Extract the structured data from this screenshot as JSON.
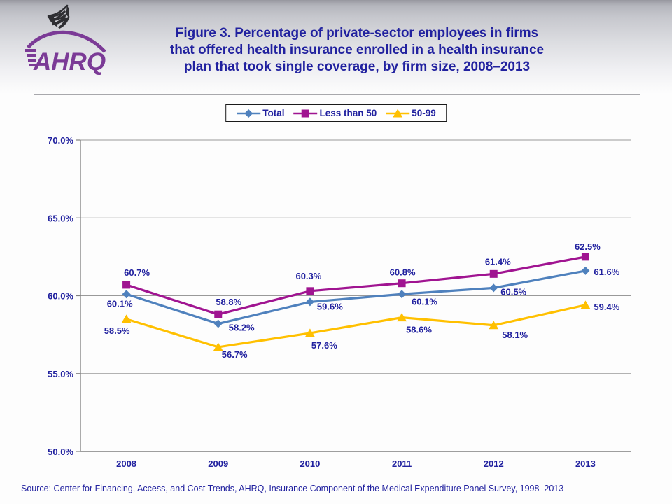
{
  "header": {
    "logo_text": "AHRQ",
    "title_lines": [
      "Figure 3. Percentage of private-sector employees in firms",
      "that offered health insurance enrolled in a health insurance",
      "plan that took single coverage, by firm size, 2008–2013"
    ]
  },
  "legend": [
    {
      "label": "Total",
      "marker": "diamond",
      "color": "#4f81bd"
    },
    {
      "label": "Less than 50",
      "marker": "square",
      "color": "#a01491"
    },
    {
      "label": "50-99",
      "marker": "triangle",
      "color": "#ffc000"
    }
  ],
  "chart_data": {
    "type": "line",
    "title": "Percentage of private-sector employees in firms that offered health insurance enrolled in a health insurance plan that took single coverage, by firm size, 2008–2013",
    "x": [
      2008,
      2009,
      2010,
      2011,
      2012,
      2013
    ],
    "xtick_labels": [
      "2008",
      "2009",
      "2010",
      "2011",
      "2012",
      "2013"
    ],
    "series": [
      {
        "name": "Total",
        "marker": "diamond",
        "color": "#4f81bd",
        "values": [
          60.1,
          58.2,
          59.6,
          60.1,
          60.5,
          61.6
        ]
      },
      {
        "name": "Less than 50",
        "marker": "square",
        "color": "#a01491",
        "values": [
          60.7,
          58.8,
          60.3,
          60.8,
          61.4,
          62.5
        ]
      },
      {
        "name": "50-99",
        "marker": "triangle",
        "color": "#ffc000",
        "values": [
          58.5,
          56.7,
          57.6,
          58.6,
          58.1,
          59.4
        ]
      }
    ],
    "ylim": [
      50,
      70
    ],
    "yticks": [
      50,
      55,
      60,
      65,
      70
    ],
    "ytick_labels": [
      "50.0%",
      "55.0%",
      "60.0%",
      "65.0%",
      "70.0%"
    ],
    "value_label_format": "0.0%",
    "grid": true,
    "legend_position": "top"
  },
  "footer": {
    "source": "Source: Center for Financing, Access, and Cost Trends, AHRQ, Insurance Component of the Medical Expenditure Panel Survey, 1998–2013"
  },
  "colors": {
    "text_navy": "#21219f",
    "logo_purple": "#7b3a96",
    "eagle_dark": "#2f2f33",
    "gridline": "#999999",
    "axis": "#7f7f7f",
    "header_gradient_top": "#97979f",
    "divider": "#a8a8ac"
  }
}
